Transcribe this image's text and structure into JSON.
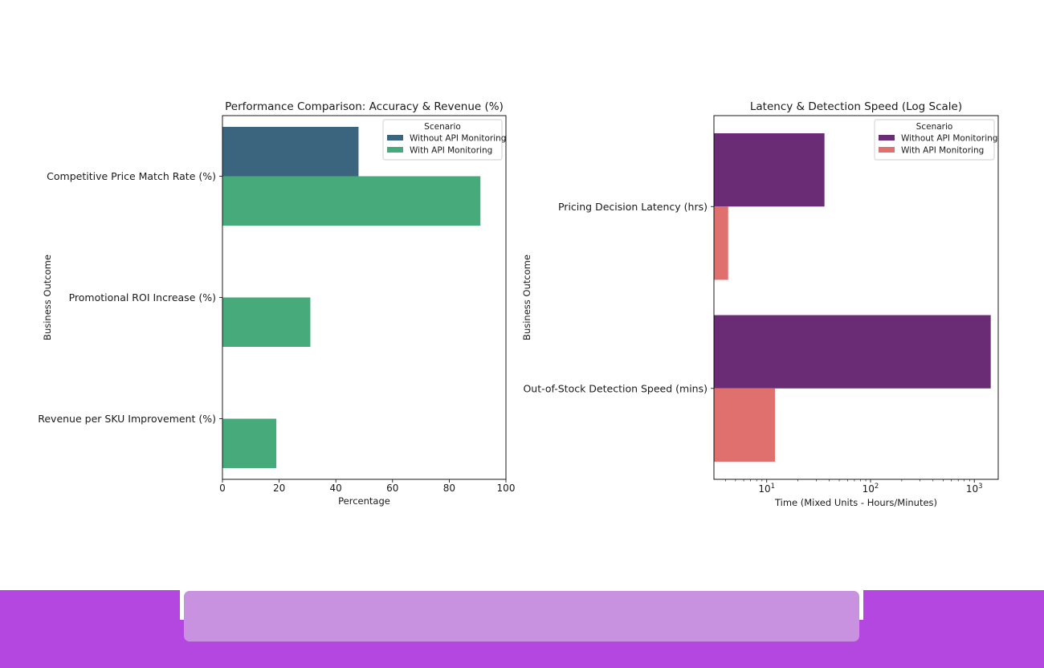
{
  "chart_data": [
    {
      "type": "bar",
      "orientation": "horizontal",
      "title": "Performance Comparison: Accuracy & Revenue (%)",
      "xlabel": "Percentage",
      "ylabel": "Business Outcome",
      "xscale": "linear",
      "xlim": [
        0,
        100
      ],
      "xticks": [
        0,
        20,
        40,
        60,
        80,
        100
      ],
      "xtick_labels": [
        "0",
        "20",
        "40",
        "60",
        "80",
        "100"
      ],
      "categories": [
        "Competitive Price Match Rate (%)",
        "Promotional ROI Increase (%)",
        "Revenue per SKU Improvement (%)"
      ],
      "series": [
        {
          "name": "Without API Monitoring",
          "color": "#3b657f",
          "values": [
            48,
            0,
            0
          ]
        },
        {
          "name": "With API Monitoring",
          "color": "#46aa7a",
          "values": [
            91,
            31,
            19
          ]
        }
      ],
      "legend": {
        "title": "Scenario",
        "position": "top-right"
      },
      "grid": false
    },
    {
      "type": "bar",
      "orientation": "horizontal",
      "title": "Latency & Detection Speed (Log Scale)",
      "xlabel": "Time (Mixed Units - Hours/Minutes)",
      "ylabel": "Business Outcome",
      "xscale": "log",
      "xlim": [
        3.1,
        1700
      ],
      "xticks": [
        10,
        100,
        1000
      ],
      "xtick_labels": [
        "10^1",
        "10^2",
        "10^3"
      ],
      "categories": [
        "Pricing Decision Latency (hrs)",
        "Out-of-Stock Detection Speed (mins)"
      ],
      "series": [
        {
          "name": "Without API Monitoring",
          "color": "#6a2c74",
          "values": [
            36,
            1440
          ]
        },
        {
          "name": "With API Monitoring",
          "color": "#e0706e",
          "values": [
            4.25,
            12
          ]
        }
      ],
      "legend": {
        "title": "Scenario",
        "position": "top-right"
      },
      "grid": false
    }
  ],
  "colors": {
    "footer_bar": "#b447e0",
    "footer_panel": "#c892e0"
  }
}
